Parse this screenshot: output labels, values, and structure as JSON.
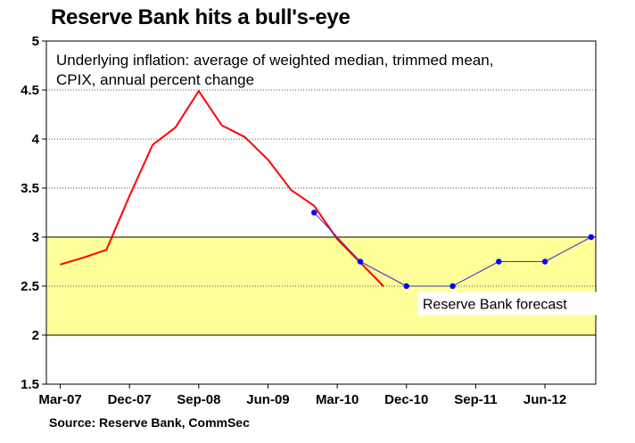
{
  "chart_data": {
    "type": "line",
    "title": "Reserve Bank hits a bull's-eye",
    "subtitle_lines": [
      "Underlying inflation: average of weighted median, trimmed mean,",
      "CPIX, annual percent change"
    ],
    "source": "Source: Reserve Bank, CommSec",
    "ylim": [
      1.5,
      5
    ],
    "yticks": [
      1.5,
      2,
      2.5,
      3,
      3.5,
      4,
      4.5,
      5
    ],
    "ytick_labels": [
      "1.5",
      "2",
      "2.5",
      "3",
      "3.5",
      "4",
      "4.5",
      "5"
    ],
    "x_tick_labels": [
      "Mar-07",
      "Dec-07",
      "Sep-08",
      "Jun-09",
      "Mar-10",
      "Dec-10",
      "Sep-11",
      "Jun-12"
    ],
    "x_tick_index": [
      0,
      3,
      6,
      9,
      12,
      15,
      18,
      21
    ],
    "x_range_index": [
      -0.6,
      23.2
    ],
    "target_band": [
      2,
      3
    ],
    "band_color": "#ffff99",
    "grid": "horizontal dashed",
    "series": [
      {
        "color": "#ff0000",
        "x_index": [
          0,
          1,
          2,
          3,
          4,
          5,
          6,
          7,
          8,
          9,
          10,
          11,
          12,
          13,
          14
        ],
        "values": [
          2.72,
          2.79,
          2.87,
          3.42,
          3.94,
          4.12,
          4.49,
          4.14,
          4.02,
          3.79,
          3.48,
          3.32,
          2.98,
          2.74,
          2.5
        ],
        "markers": false
      },
      {
        "color": "#3333cc",
        "x_index": [
          11,
          13,
          15,
          17,
          19,
          21,
          23
        ],
        "values": [
          3.25,
          2.75,
          2.5,
          2.5,
          2.75,
          2.75,
          3.0
        ],
        "markers": true
      }
    ],
    "annotations": [
      {
        "text": "Reserve Bank forecast",
        "x_index": 15.7,
        "y": 2.26
      }
    ]
  }
}
